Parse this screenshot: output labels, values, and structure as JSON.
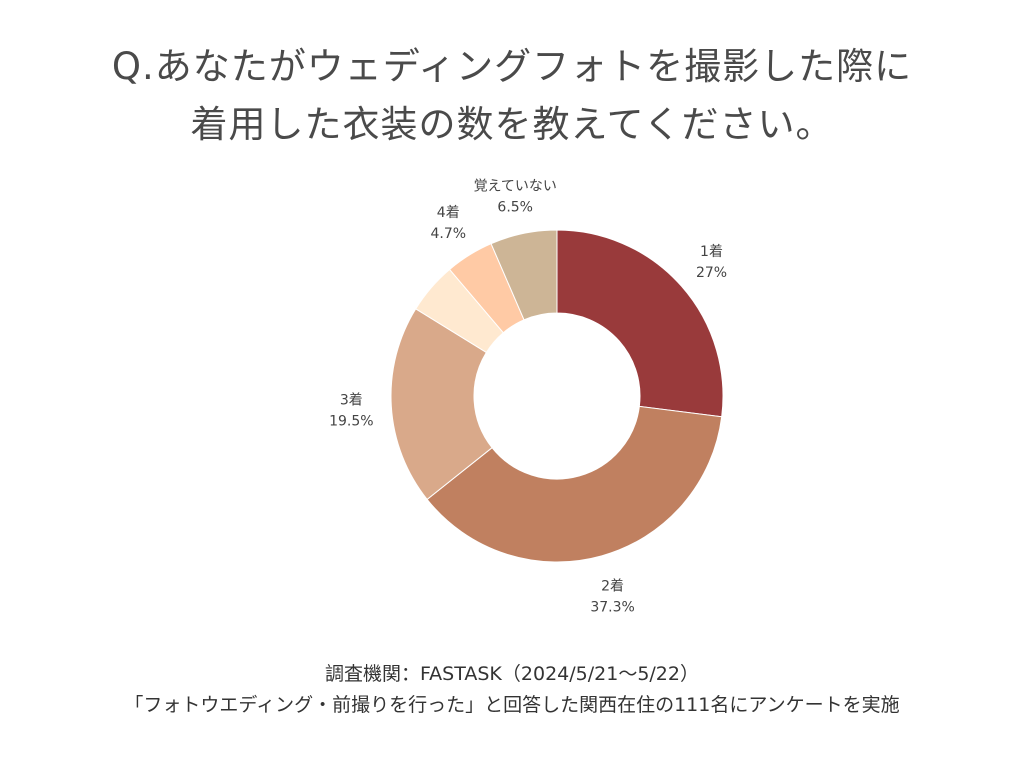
{
  "title": {
    "line1": "Q.あなたがウェディングフォトを撮影した際に",
    "line2": "着用した衣装の数を教えてください。"
  },
  "chart_data": {
    "type": "pie",
    "donut": true,
    "start": "top",
    "direction": "clockwise",
    "unit": "%",
    "slices": [
      {
        "label": "1着",
        "value": 27,
        "display": "27%",
        "color": "#993a3b"
      },
      {
        "label": "2着",
        "value": 37.3,
        "display": "37.3%",
        "color": "#c08060"
      },
      {
        "label": "3着",
        "value": 19.5,
        "display": "19.5%",
        "color": "#d9a98a"
      },
      {
        "label": "",
        "value": 5.0,
        "display": "",
        "color": "#ffe9d0"
      },
      {
        "label": "4着",
        "value": 4.7,
        "display": "4.7%",
        "color": "#ffcaa5"
      },
      {
        "label": "覚えていない",
        "value": 6.5,
        "display": "6.5%",
        "color": "#cdb596"
      }
    ]
  },
  "footer": {
    "line1": "調査機関：FASTASK（2024/5/21～5/22）",
    "line2": "「フォトウエディング・前撮りを行った」と回答した関西在住の111名にアンケートを実施"
  }
}
